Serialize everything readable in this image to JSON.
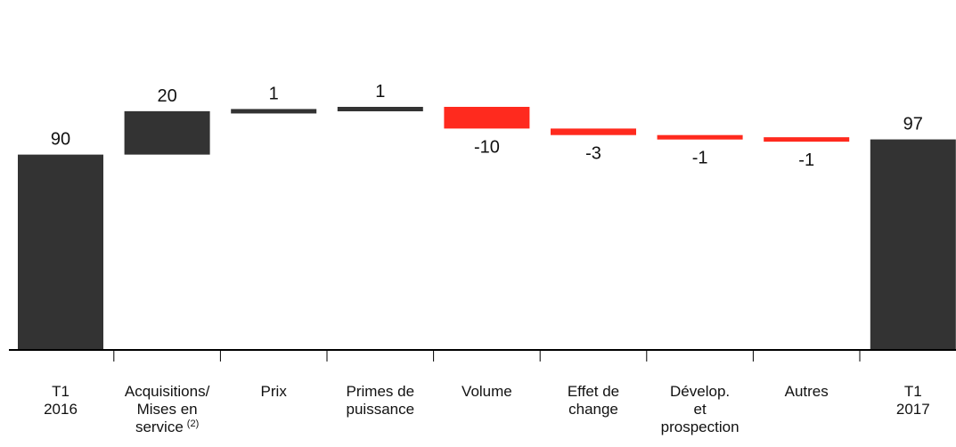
{
  "chart_data": {
    "type": "bar",
    "subtype": "waterfall",
    "title": "",
    "xlabel": "",
    "ylabel": "",
    "ylim": [
      0,
      120
    ],
    "grid": false,
    "legend": "none",
    "colors": {
      "total": "#333333",
      "increase": "#333333",
      "decrease": "#ff2a1e",
      "axis": "#000000"
    },
    "steps": [
      {
        "lines": [
          "T1",
          "2016"
        ],
        "value": 90,
        "kind": "total",
        "label": "90"
      },
      {
        "lines": [
          "Acquisitions/",
          "Mises en",
          "service"
        ],
        "sup": "(2)",
        "value": 20,
        "kind": "delta",
        "label": "20"
      },
      {
        "lines": [
          "Prix"
        ],
        "value": 1,
        "kind": "delta",
        "label": "1"
      },
      {
        "lines": [
          "Primes de",
          "puissance"
        ],
        "value": 1,
        "kind": "delta",
        "label": "1"
      },
      {
        "lines": [
          "Volume"
        ],
        "value": -10,
        "kind": "delta",
        "label": "-10"
      },
      {
        "lines": [
          "Effet de",
          "change"
        ],
        "value": -3,
        "kind": "delta",
        "label": "-3"
      },
      {
        "lines": [
          "Dévelop.",
          "et",
          "prospection"
        ],
        "value": -1,
        "kind": "delta",
        "label": "-1"
      },
      {
        "lines": [
          "Autres"
        ],
        "value": -1,
        "kind": "delta",
        "label": "-1"
      },
      {
        "lines": [
          "T1",
          "2017"
        ],
        "value": 97,
        "kind": "total",
        "label": "97"
      }
    ]
  }
}
